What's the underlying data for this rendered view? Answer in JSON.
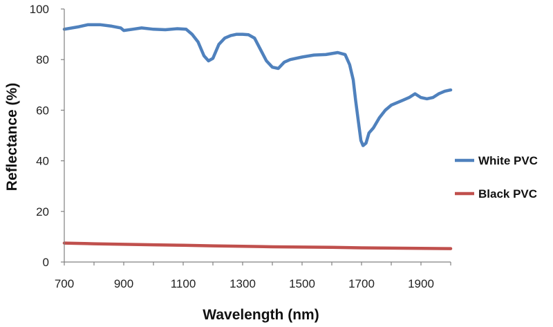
{
  "chart_data": {
    "type": "line",
    "xlabel": "Wavelength (nm)",
    "ylabel": "Reflectance (%)",
    "xlim": [
      700,
      2000
    ],
    "ylim": [
      0,
      100
    ],
    "x_ticks": [
      700,
      900,
      1100,
      1300,
      1500,
      1700,
      1900
    ],
    "y_ticks": [
      0,
      20,
      40,
      60,
      80,
      100
    ],
    "grid": false,
    "legend_position": "right",
    "series": [
      {
        "name": "White PVC",
        "color": "#4f81bd",
        "x": [
          700,
          750,
          780,
          820,
          860,
          890,
          900,
          930,
          960,
          1000,
          1040,
          1080,
          1110,
          1130,
          1150,
          1170,
          1185,
          1200,
          1220,
          1240,
          1260,
          1280,
          1300,
          1320,
          1340,
          1360,
          1380,
          1400,
          1420,
          1440,
          1460,
          1500,
          1540,
          1580,
          1620,
          1645,
          1660,
          1672,
          1680,
          1690,
          1698,
          1705,
          1715,
          1725,
          1740,
          1760,
          1780,
          1800,
          1820,
          1840,
          1860,
          1880,
          1900,
          1920,
          1940,
          1960,
          1980,
          2000
        ],
        "y": [
          92,
          93,
          93.8,
          93.8,
          93.2,
          92.5,
          91.5,
          92,
          92.5,
          92,
          91.8,
          92.2,
          92,
          90,
          87,
          81.5,
          79.5,
          80.5,
          86,
          88.5,
          89.5,
          90,
          90,
          89.8,
          88.5,
          84,
          79.5,
          77,
          76.5,
          79,
          80,
          81,
          81.8,
          82,
          82.8,
          82,
          78,
          72,
          64,
          55,
          48,
          46,
          47,
          51,
          53,
          57,
          60,
          62,
          63,
          64,
          65,
          66.5,
          65,
          64.5,
          65,
          66.5,
          67.5,
          68
        ]
      },
      {
        "name": "Black PVC",
        "color": "#c0504d",
        "x": [
          700,
          800,
          900,
          1000,
          1100,
          1200,
          1300,
          1400,
          1500,
          1600,
          1700,
          1800,
          1900,
          2000
        ],
        "y": [
          7.5,
          7.2,
          7.0,
          6.8,
          6.6,
          6.4,
          6.2,
          6.0,
          5.9,
          5.8,
          5.6,
          5.5,
          5.4,
          5.3
        ]
      }
    ]
  }
}
